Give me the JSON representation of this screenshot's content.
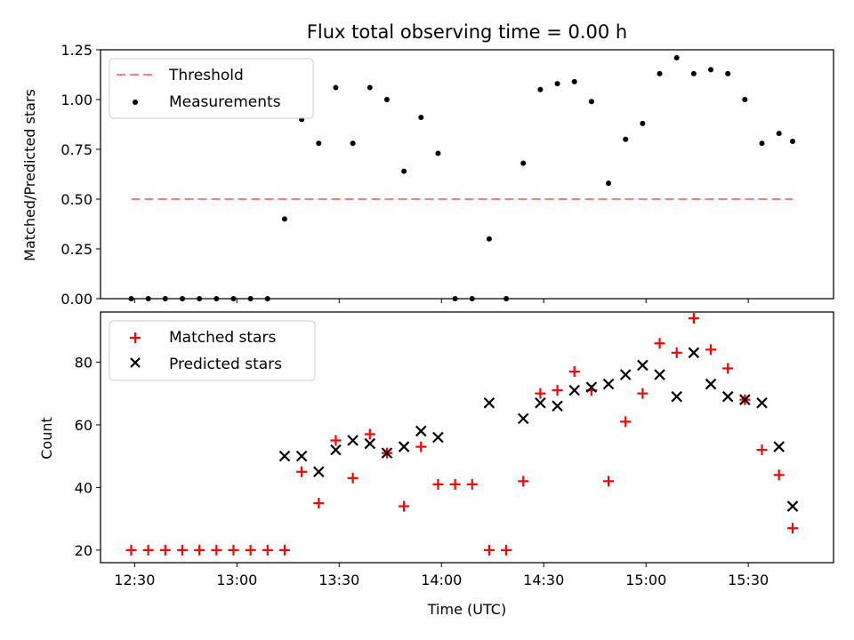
{
  "chart_data": [
    {
      "type": "scatter",
      "title": "Flux total observing time = 0.00 h",
      "ylabel": "Matched/Predicted stars",
      "xlabel": "",
      "xlim": [
        "12:20",
        "15:55"
      ],
      "ylim": [
        0,
        1.25
      ],
      "yticks": [
        0.0,
        0.25,
        0.5,
        0.75,
        1.0,
        1.25
      ],
      "ytick_labels": [
        "0.00",
        "0.25",
        "0.50",
        "0.75",
        "1.00",
        "1.25"
      ],
      "grid": false,
      "legend_position": "upper-left",
      "legend": [
        {
          "label": "Threshold",
          "style": "dashed-line",
          "color": "#ff7f7f"
        },
        {
          "label": "Measurements",
          "style": "dot",
          "color": "#000000"
        }
      ],
      "threshold": {
        "name": "Threshold",
        "value": 0.5,
        "x_start": "12:29",
        "x_end": "15:43",
        "color": "#ff7f7f"
      },
      "series": [
        {
          "name": "Measurements",
          "color": "#000000",
          "x": [
            "12:29",
            "12:34",
            "12:39",
            "12:44",
            "12:49",
            "12:54",
            "12:59",
            "13:04",
            "13:09",
            "13:14",
            "13:19",
            "13:24",
            "13:29",
            "13:34",
            "13:39",
            "13:44",
            "13:49",
            "13:54",
            "13:59",
            "14:04",
            "14:09",
            "14:14",
            "14:19",
            "14:24",
            "14:29",
            "14:34",
            "14:39",
            "14:44",
            "14:49",
            "14:54",
            "14:59",
            "15:04",
            "15:09",
            "15:14",
            "15:19",
            "15:24",
            "15:29",
            "15:34",
            "15:39",
            "15:43"
          ],
          "y": [
            0.0,
            0.0,
            0.0,
            0.0,
            0.0,
            0.0,
            0.0,
            0.0,
            0.0,
            0.4,
            0.9,
            0.78,
            1.06,
            0.78,
            1.06,
            1.0,
            0.64,
            0.91,
            0.73,
            0.0,
            0.0,
            0.3,
            0.0,
            0.68,
            1.05,
            1.08,
            1.09,
            0.99,
            0.58,
            0.8,
            0.88,
            1.13,
            1.21,
            1.13,
            1.15,
            1.13,
            1.0,
            0.78,
            0.83,
            0.79
          ]
        }
      ]
    },
    {
      "type": "scatter",
      "title": "",
      "xlabel": "Time (UTC)",
      "ylabel": "Count",
      "xlim": [
        "12:20",
        "15:55"
      ],
      "xticks": [
        "12:30",
        "13:00",
        "13:30",
        "14:00",
        "14:30",
        "15:00",
        "15:30"
      ],
      "ylim": [
        16,
        96
      ],
      "yticks": [
        20,
        40,
        60,
        80
      ],
      "grid": false,
      "legend_position": "upper-left",
      "legend": [
        {
          "label": "Matched stars",
          "style": "plus",
          "color": "#ff0000"
        },
        {
          "label": "Predicted stars",
          "style": "x",
          "color": "#000000"
        }
      ],
      "series": [
        {
          "name": "Matched stars",
          "color": "#ff0000",
          "x": [
            "12:29",
            "12:34",
            "12:39",
            "12:44",
            "12:49",
            "12:54",
            "12:59",
            "13:04",
            "13:09",
            "13:14",
            "13:19",
            "13:24",
            "13:29",
            "13:34",
            "13:39",
            "13:44",
            "13:49",
            "13:54",
            "13:59",
            "14:04",
            "14:09",
            "14:14",
            "14:19",
            "14:24",
            "14:29",
            "14:34",
            "14:39",
            "14:44",
            "14:49",
            "14:54",
            "14:59",
            "15:04",
            "15:09",
            "15:14",
            "15:19",
            "15:24",
            "15:29",
            "15:34",
            "15:39",
            "15:43"
          ],
          "y": [
            20,
            20,
            20,
            20,
            20,
            20,
            20,
            20,
            20,
            20,
            45,
            35,
            55,
            43,
            57,
            51,
            34,
            53,
            41,
            41,
            41,
            20,
            20,
            42,
            70,
            71,
            77,
            71,
            42,
            61,
            70,
            86,
            83,
            94,
            84,
            78,
            68,
            52,
            44,
            27
          ]
        },
        {
          "name": "Predicted stars",
          "color": "#000000",
          "x": [
            "13:14",
            "13:19",
            "13:24",
            "13:29",
            "13:34",
            "13:39",
            "13:44",
            "13:49",
            "13:54",
            "13:59",
            "14:14",
            "14:24",
            "14:29",
            "14:34",
            "14:39",
            "14:44",
            "14:49",
            "14:54",
            "14:59",
            "15:04",
            "15:09",
            "15:14",
            "15:19",
            "15:24",
            "15:29",
            "15:34",
            "15:39",
            "15:43"
          ],
          "y": [
            50,
            50,
            45,
            52,
            55,
            54,
            51,
            53,
            58,
            56,
            67,
            62,
            67,
            66,
            71,
            72,
            73,
            76,
            79,
            76,
            69,
            83,
            73,
            69,
            68,
            67,
            53,
            34
          ]
        }
      ]
    }
  ]
}
